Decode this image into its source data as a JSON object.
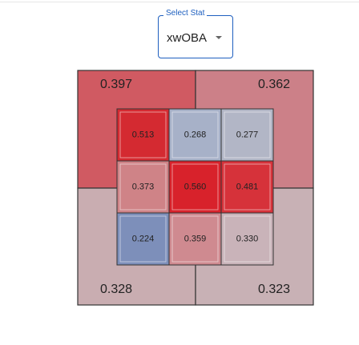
{
  "select": {
    "label": "Select Stat",
    "value": "xwOBA"
  },
  "outer_zones": [
    {
      "label": "0.397",
      "color": "#d05a62"
    },
    {
      "label": "0.362",
      "color": "#cc8088"
    },
    {
      "label": "0.328",
      "color": "#c9adb1"
    },
    {
      "label": "0.323",
      "color": "#c8b1b5"
    }
  ],
  "inner_zones": [
    [
      {
        "label": "0.513",
        "color": "#d42a31"
      },
      {
        "label": "0.268",
        "color": "#a7b1c8"
      },
      {
        "label": "0.277",
        "color": "#b2b6c6"
      }
    ],
    [
      {
        "label": "0.373",
        "color": "#cf8387"
      },
      {
        "label": "0.560",
        "color": "#d8222b"
      },
      {
        "label": "0.481",
        "color": "#d6323a"
      }
    ],
    [
      {
        "label": "0.224",
        "color": "#7d8fba"
      },
      {
        "label": "0.359",
        "color": "#cf8a90"
      },
      {
        "label": "0.330",
        "color": "#c9b3b9"
      }
    ]
  ]
}
